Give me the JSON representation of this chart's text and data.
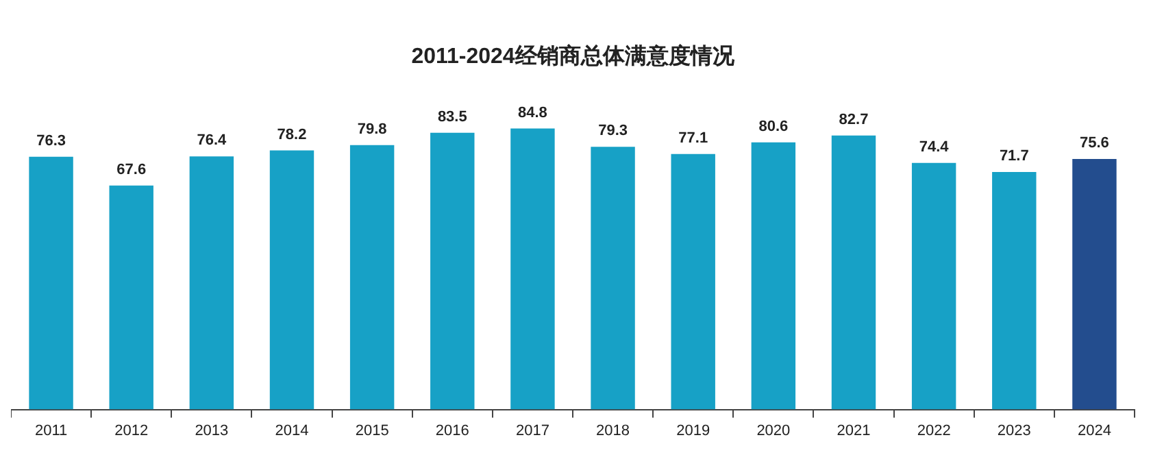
{
  "chart_data": {
    "type": "bar",
    "title": "2011-2024经销商总体满意度情况",
    "categories": [
      "2011",
      "2012",
      "2013",
      "2014",
      "2015",
      "2016",
      "2017",
      "2018",
      "2019",
      "2020",
      "2021",
      "2022",
      "2023",
      "2024"
    ],
    "values": [
      76.3,
      67.6,
      76.4,
      78.2,
      79.8,
      83.5,
      84.8,
      79.3,
      77.1,
      80.6,
      82.7,
      74.4,
      71.7,
      75.6
    ],
    "colors": [
      "#17a1c6",
      "#17a1c6",
      "#17a1c6",
      "#17a1c6",
      "#17a1c6",
      "#17a1c6",
      "#17a1c6",
      "#17a1c6",
      "#17a1c6",
      "#17a1c6",
      "#17a1c6",
      "#17a1c6",
      "#17a1c6",
      "#234d8e"
    ],
    "data_labels": true,
    "grid": false,
    "legend": false
  }
}
